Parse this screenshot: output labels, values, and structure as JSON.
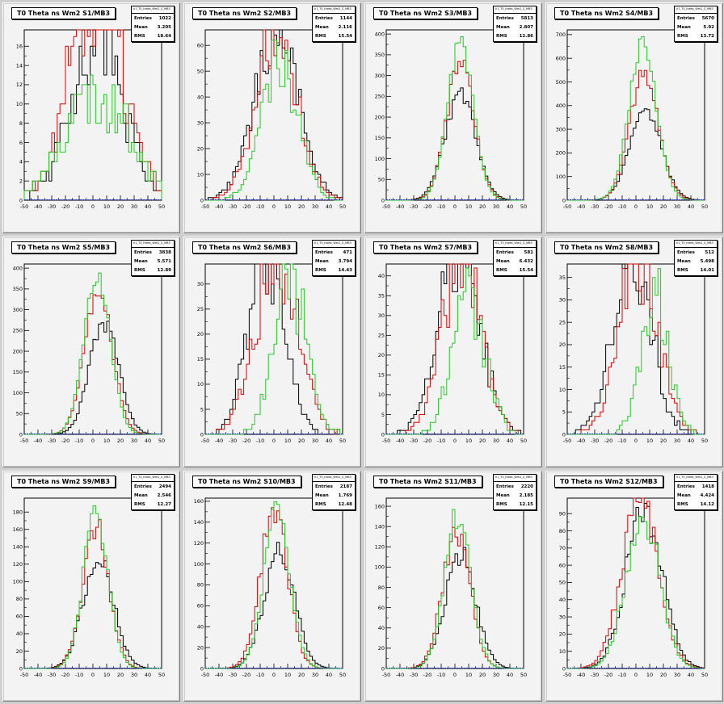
{
  "chart_data": [
    {
      "type": "histogram",
      "title": "T0 Theta ns Wm2 S1/MB3",
      "stats": {
        "entries": "1022",
        "mean": "3.205",
        "rms": "18.64"
      },
      "xticks": [
        -50,
        -40,
        -30,
        -20,
        -10,
        0,
        10,
        20,
        30,
        40,
        50
      ],
      "yticks": [
        0,
        2,
        4,
        6,
        8,
        10,
        12,
        14,
        16
      ],
      "xlim": [
        -50,
        50
      ],
      "ylim": [
        0,
        17.7
      ],
      "series": [
        {
          "color": "#000000",
          "mean": 3.2,
          "sigma": 18.6,
          "peak": 17,
          "noise": 0.32,
          "seed": 11
        },
        {
          "color": "#e00000",
          "mean": 3.0,
          "sigma": 19.0,
          "peak": 24,
          "noise": 0.35,
          "seed": 12
        },
        {
          "color": "#22cc22",
          "mean": 4.0,
          "sigma": 24.0,
          "peak": 11,
          "noise": 0.3,
          "seed": 13
        }
      ]
    },
    {
      "type": "histogram",
      "title": "T0 Theta ns Wm2 S2/MB3",
      "stats": {
        "entries": "1144",
        "mean": "2.116",
        "rms": "15.54"
      },
      "xticks": [
        -50,
        -40,
        -30,
        -20,
        -10,
        0,
        10,
        20,
        30,
        40,
        50
      ],
      "yticks": [
        0,
        10,
        20,
        30,
        40,
        50,
        60
      ],
      "xlim": [
        -50,
        50
      ],
      "ylim": [
        0,
        66
      ],
      "series": [
        {
          "color": "#000000",
          "mean": 2.0,
          "sigma": 16.0,
          "peak": 66,
          "noise": 0.2,
          "seed": 21
        },
        {
          "color": "#e00000",
          "mean": 2.0,
          "sigma": 15.0,
          "peak": 66,
          "noise": 0.2,
          "seed": 22
        },
        {
          "color": "#22cc22",
          "mean": 4.0,
          "sigma": 13.0,
          "peak": 55,
          "noise": 0.22,
          "seed": 23
        }
      ]
    },
    {
      "type": "histogram",
      "title": "T0 Theta ns Wm2 S3/MB3",
      "stats": {
        "entries": "5813",
        "mean": "2.807",
        "rms": "12.86"
      },
      "xticks": [
        -50,
        -40,
        -30,
        -20,
        -10,
        0,
        10,
        20,
        30,
        40,
        50
      ],
      "yticks": [
        0,
        50,
        100,
        150,
        200,
        250,
        300,
        350,
        400
      ],
      "xlim": [
        -50,
        50
      ],
      "ylim": [
        0,
        410
      ],
      "series": [
        {
          "color": "#000000",
          "mean": 4.0,
          "sigma": 11.0,
          "peak": 260,
          "noise": 0.08,
          "seed": 31
        },
        {
          "color": "#e00000",
          "mean": 4.0,
          "sigma": 10.0,
          "peak": 330,
          "noise": 0.08,
          "seed": 32
        },
        {
          "color": "#22cc22",
          "mean": 4.0,
          "sigma": 9.5,
          "peak": 375,
          "noise": 0.06,
          "seed": 33
        }
      ]
    },
    {
      "type": "histogram",
      "title": "T0 Theta ns Wm2 S4/MB3",
      "stats": {
        "entries": "5670",
        "mean": "5.92",
        "rms": "13.72"
      },
      "xticks": [
        -50,
        -40,
        -30,
        -20,
        -10,
        0,
        10,
        20,
        30,
        40,
        50
      ],
      "yticks": [
        0,
        100,
        200,
        300,
        400,
        500,
        600,
        700
      ],
      "xlim": [
        -50,
        50
      ],
      "ylim": [
        0,
        720
      ],
      "series": [
        {
          "color": "#000000",
          "mean": 7.0,
          "sigma": 11.5,
          "peak": 370,
          "noise": 0.08,
          "seed": 41
        },
        {
          "color": "#e00000",
          "mean": 6.0,
          "sigma": 10.5,
          "peak": 540,
          "noise": 0.07,
          "seed": 42
        },
        {
          "color": "#22cc22",
          "mean": 5.0,
          "sigma": 10.0,
          "peak": 660,
          "noise": 0.06,
          "seed": 43
        }
      ]
    },
    {
      "type": "histogram",
      "title": "T0 Theta ns Wm2 S5/MB3",
      "stats": {
        "entries": "3838",
        "mean": "5.571",
        "rms": "12.89"
      },
      "xticks": [
        -50,
        -40,
        -30,
        -20,
        -10,
        0,
        10,
        20,
        30,
        40,
        50
      ],
      "yticks": [
        0,
        50,
        100,
        150,
        200,
        250,
        300,
        350,
        400
      ],
      "xlim": [
        -50,
        50
      ],
      "ylim": [
        0,
        410
      ],
      "series": [
        {
          "color": "#000000",
          "mean": 8.0,
          "sigma": 10.5,
          "peak": 270,
          "noise": 0.09,
          "seed": 51
        },
        {
          "color": "#e00000",
          "mean": 4.0,
          "sigma": 10.0,
          "peak": 350,
          "noise": 0.08,
          "seed": 52
        },
        {
          "color": "#22cc22",
          "mean": 3.0,
          "sigma": 9.5,
          "peak": 380,
          "noise": 0.07,
          "seed": 53
        }
      ]
    },
    {
      "type": "histogram",
      "title": "T0 Theta ns Wm2 S6/MB3",
      "stats": {
        "entries": "471",
        "mean": "3.794",
        "rms": "14.43"
      },
      "xticks": [
        -50,
        -40,
        -30,
        -20,
        -10,
        0,
        10,
        20,
        30,
        40,
        50
      ],
      "yticks": [
        0,
        5,
        10,
        15,
        20,
        25,
        30
      ],
      "xlim": [
        -50,
        50
      ],
      "ylim": [
        0,
        34
      ],
      "series": [
        {
          "color": "#000000",
          "mean": -5.0,
          "sigma": 13.0,
          "peak": 38,
          "noise": 0.28,
          "seed": 61
        },
        {
          "color": "#e00000",
          "mean": 2.0,
          "sigma": 15.0,
          "peak": 36,
          "noise": 0.28,
          "seed": 62
        },
        {
          "color": "#22cc22",
          "mean": 12.0,
          "sigma": 12.0,
          "peak": 30,
          "noise": 0.3,
          "seed": 63
        }
      ]
    },
    {
      "type": "histogram",
      "title": "T0 Theta ns Wm2 S7/MB3",
      "stats": {
        "entries": "581",
        "mean": "6.432",
        "rms": "15.54"
      },
      "xticks": [
        -50,
        -40,
        -30,
        -20,
        -10,
        0,
        10,
        20,
        30,
        40,
        50
      ],
      "yticks": [
        0,
        5,
        10,
        15,
        20,
        25,
        30,
        35,
        40
      ],
      "xlim": [
        -50,
        50
      ],
      "ylim": [
        0,
        43
      ],
      "series": [
        {
          "color": "#000000",
          "mean": 3.0,
          "sigma": 15.0,
          "peak": 46,
          "noise": 0.25,
          "seed": 71
        },
        {
          "color": "#e00000",
          "mean": 5.0,
          "sigma": 14.0,
          "peak": 46,
          "noise": 0.25,
          "seed": 72
        },
        {
          "color": "#22cc22",
          "mean": 10.0,
          "sigma": 12.0,
          "peak": 34,
          "noise": 0.28,
          "seed": 73
        }
      ]
    },
    {
      "type": "histogram",
      "title": "T0 Theta ns Wm2 S8/MB3",
      "stats": {
        "entries": "512",
        "mean": "5.498",
        "rms": "14.01"
      },
      "xticks": [
        -50,
        -40,
        -30,
        -20,
        -10,
        0,
        10,
        20,
        30,
        40,
        50
      ],
      "yticks": [
        0,
        5,
        10,
        15,
        20,
        25,
        30,
        35
      ],
      "xlim": [
        -50,
        50
      ],
      "ylim": [
        0,
        38
      ],
      "series": [
        {
          "color": "#000000",
          "mean": -3.0,
          "sigma": 14.0,
          "peak": 40,
          "noise": 0.26,
          "seed": 81
        },
        {
          "color": "#e00000",
          "mean": 2.0,
          "sigma": 14.0,
          "peak": 40,
          "noise": 0.26,
          "seed": 82
        },
        {
          "color": "#22cc22",
          "mean": 14.0,
          "sigma": 10.0,
          "peak": 32,
          "noise": 0.3,
          "seed": 83
        }
      ]
    },
    {
      "type": "histogram",
      "title": "T0 Theta ns Wm2 S9/MB3",
      "stats": {
        "entries": "2494",
        "mean": "2.546",
        "rms": "12.27"
      },
      "xticks": [
        -50,
        -40,
        -30,
        -20,
        -10,
        0,
        10,
        20,
        30,
        40,
        50
      ],
      "yticks": [
        0,
        20,
        40,
        60,
        80,
        100,
        120,
        140,
        160,
        180
      ],
      "xlim": [
        -50,
        50
      ],
      "ylim": [
        0,
        196
      ],
      "series": [
        {
          "color": "#000000",
          "mean": 4.0,
          "sigma": 11.0,
          "peak": 125,
          "noise": 0.12,
          "seed": 91
        },
        {
          "color": "#e00000",
          "mean": 2.0,
          "sigma": 9.5,
          "peak": 165,
          "noise": 0.1,
          "seed": 92
        },
        {
          "color": "#22cc22",
          "mean": 2.0,
          "sigma": 9.0,
          "peak": 180,
          "noise": 0.09,
          "seed": 93
        }
      ]
    },
    {
      "type": "histogram",
      "title": "T0 Theta ns Wm2 S10/MB3",
      "stats": {
        "entries": "2187",
        "mean": "1.769",
        "rms": "12.48"
      },
      "xticks": [
        -50,
        -40,
        -30,
        -20,
        -10,
        0,
        10,
        20,
        30,
        40,
        50
      ],
      "yticks": [
        0,
        20,
        40,
        60,
        80,
        100,
        120,
        140,
        160
      ],
      "xlim": [
        -50,
        50
      ],
      "ylim": [
        0,
        163
      ],
      "series": [
        {
          "color": "#000000",
          "mean": 4.0,
          "sigma": 11.0,
          "peak": 115,
          "noise": 0.12,
          "seed": 101
        },
        {
          "color": "#e00000",
          "mean": 0.0,
          "sigma": 10.0,
          "peak": 150,
          "noise": 0.1,
          "seed": 102
        },
        {
          "color": "#22cc22",
          "mean": 2.0,
          "sigma": 9.5,
          "peak": 150,
          "noise": 0.09,
          "seed": 103
        }
      ]
    },
    {
      "type": "histogram",
      "title": "T0 Theta ns Wm2 S11/MB3",
      "stats": {
        "entries": "2220",
        "mean": "2.185",
        "rms": "12.15"
      },
      "xticks": [
        -50,
        -40,
        -30,
        -20,
        -10,
        0,
        10,
        20,
        30,
        40,
        50
      ],
      "yticks": [
        0,
        20,
        40,
        60,
        80,
        100,
        120,
        140,
        160
      ],
      "xlim": [
        -50,
        50
      ],
      "ylim": [
        0,
        168
      ],
      "series": [
        {
          "color": "#000000",
          "mean": 4.0,
          "sigma": 11.0,
          "peak": 115,
          "noise": 0.12,
          "seed": 111
        },
        {
          "color": "#e00000",
          "mean": 1.0,
          "sigma": 10.0,
          "peak": 135,
          "noise": 0.1,
          "seed": 112
        },
        {
          "color": "#22cc22",
          "mean": 2.0,
          "sigma": 9.5,
          "peak": 152,
          "noise": 0.09,
          "seed": 113
        }
      ]
    },
    {
      "type": "histogram",
      "title": "T0 Theta ns Wm2 S12/MB3",
      "stats": {
        "entries": "1418",
        "mean": "4.424",
        "rms": "14.12"
      },
      "xticks": [
        -50,
        -40,
        -30,
        -20,
        -10,
        0,
        10,
        20,
        30,
        40,
        50
      ],
      "yticks": [
        0,
        10,
        20,
        30,
        40,
        50,
        60,
        70,
        80,
        90
      ],
      "xlim": [
        -50,
        50
      ],
      "ylim": [
        0,
        99
      ],
      "series": [
        {
          "color": "#000000",
          "mean": 6.0,
          "sigma": 13.0,
          "peak": 95,
          "noise": 0.14,
          "seed": 121
        },
        {
          "color": "#e00000",
          "mean": 3.0,
          "sigma": 13.0,
          "peak": 100,
          "noise": 0.14,
          "seed": 122
        },
        {
          "color": "#22cc22",
          "mean": 5.0,
          "sigma": 12.0,
          "peak": 92,
          "noise": 0.14,
          "seed": 123
        }
      ]
    }
  ],
  "stats_labels": {
    "entries": "Entries",
    "mean": "Mean",
    "rms": "RMS"
  },
  "stats_box_name": "h1_T0_theta_Wm2_S_MB3"
}
